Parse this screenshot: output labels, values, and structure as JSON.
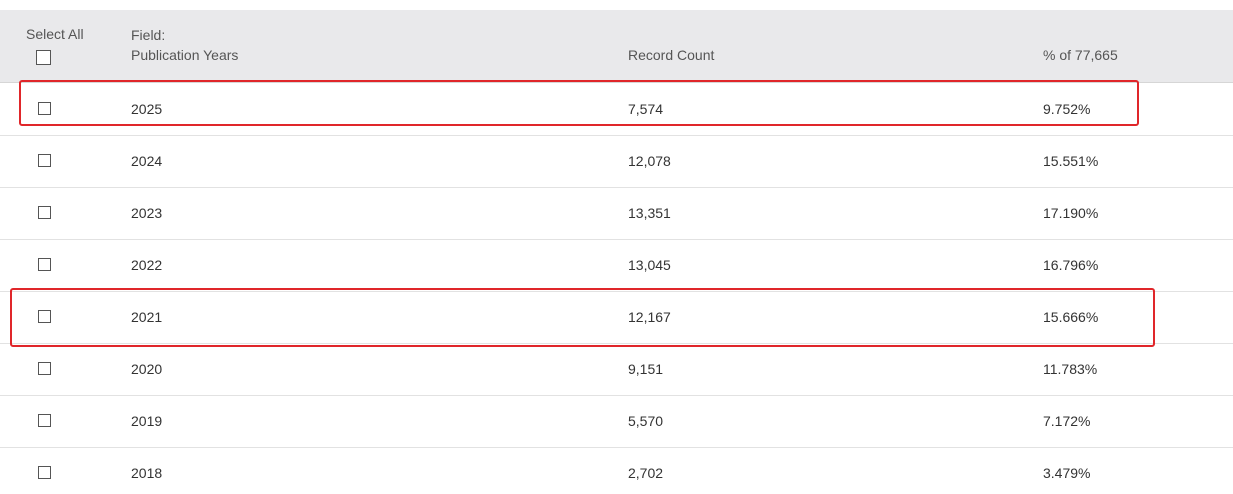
{
  "table": {
    "header": {
      "select_all": "Select All",
      "field_label": "Field:",
      "field_name": "Publication Years",
      "record_count": "Record Count",
      "percent": "% of 77,665"
    },
    "rows": [
      [
        "2025",
        "7,574",
        "9.752%"
      ],
      [
        "2024",
        "12,078",
        "15.551%"
      ],
      [
        "2023",
        "13,351",
        "17.190%"
      ],
      [
        "2022",
        "13,045",
        "16.796%"
      ],
      [
        "2021",
        "12,167",
        "15.666%"
      ],
      [
        "2020",
        "9,151",
        "11.783%"
      ],
      [
        "2019",
        "5,570",
        "7.172%"
      ],
      [
        "2018",
        "2,702",
        "3.479%"
      ]
    ]
  }
}
